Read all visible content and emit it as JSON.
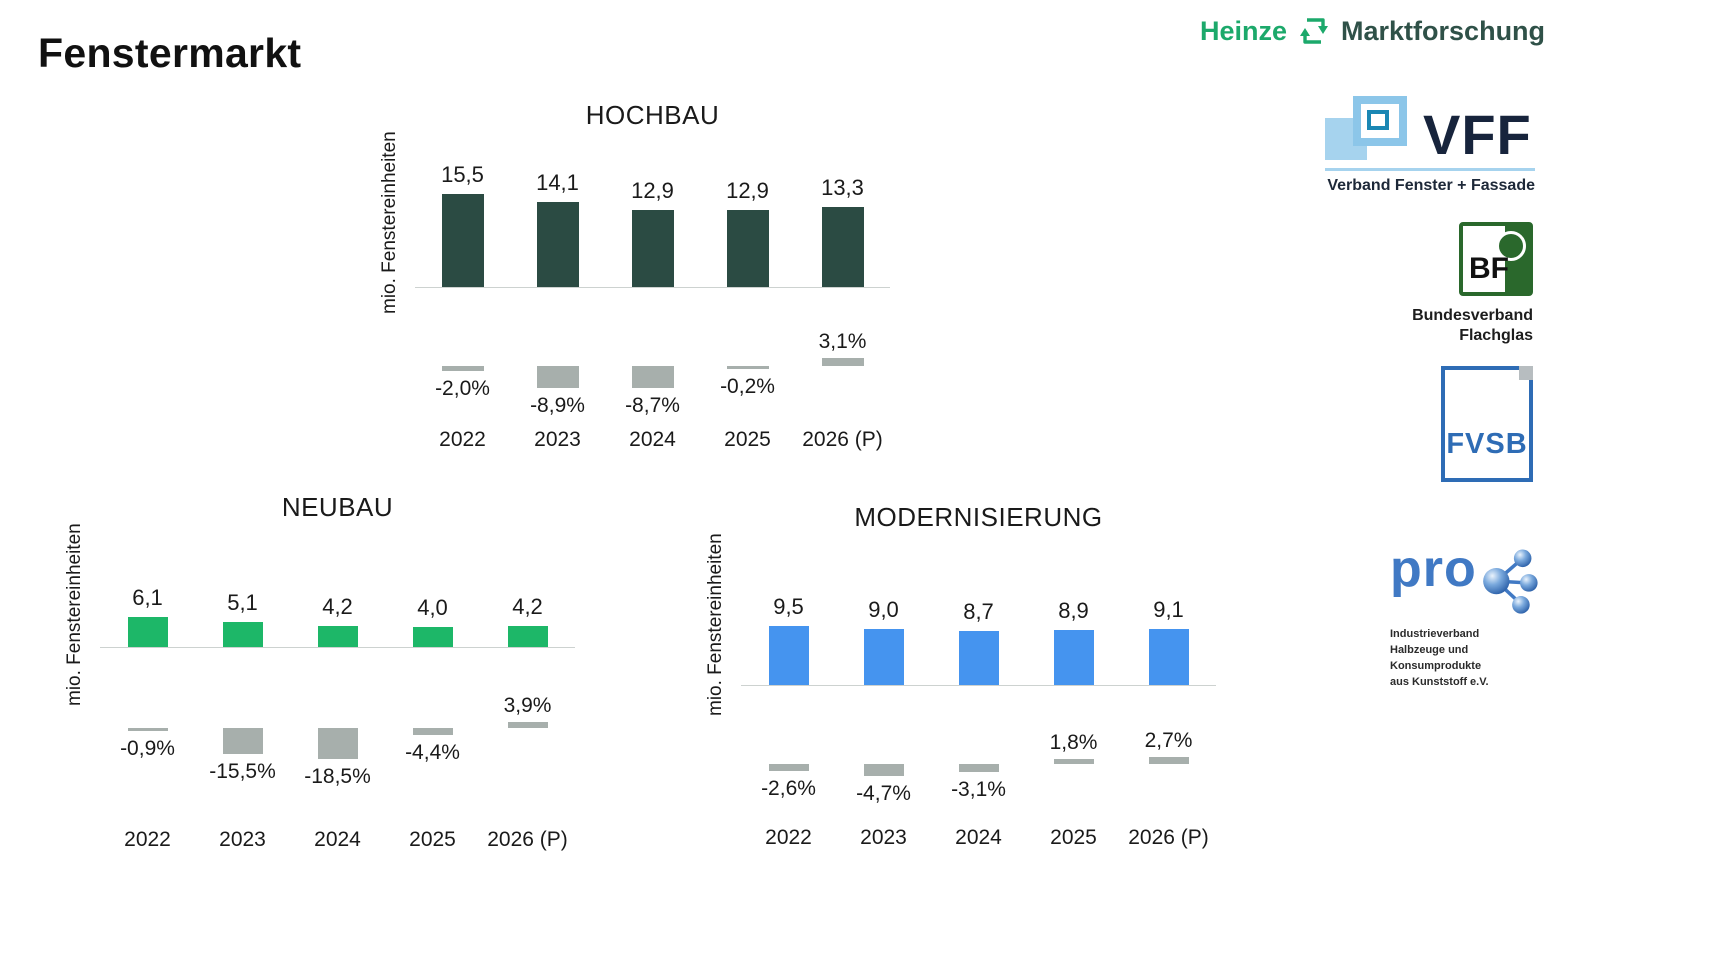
{
  "page": {
    "title": "Fenstermarkt"
  },
  "chart_data": [
    {
      "type": "bar",
      "title": "HOCHBAU",
      "ylabel": "mio. Fenstereinheiten",
      "categories": [
        "2022",
        "2023",
        "2024",
        "2025",
        "2026 (P)"
      ],
      "values": [
        15.5,
        14.1,
        12.9,
        12.9,
        13.3
      ],
      "value_labels": [
        "15,5",
        "14,1",
        "12,9",
        "12,9",
        "13,3"
      ],
      "pct_change_values": [
        -2.0,
        -8.9,
        -8.7,
        -0.2,
        3.1
      ],
      "pct_change_labels": [
        "-2,0%",
        "-8,9%",
        "-8,7%",
        "-0,2%",
        "3,1%"
      ],
      "bar_color": "#2b4b43",
      "pct_bar_color": "#a7afac",
      "grid": false,
      "value_axis_visible": false,
      "legend": "none"
    },
    {
      "type": "bar",
      "title": "NEUBAU",
      "ylabel": "mio. Fenstereinheiten",
      "categories": [
        "2022",
        "2023",
        "2024",
        "2025",
        "2026 (P)"
      ],
      "values": [
        6.1,
        5.1,
        4.2,
        4.0,
        4.2
      ],
      "value_labels": [
        "6,1",
        "5,1",
        "4,2",
        "4,0",
        "4,2"
      ],
      "pct_change_values": [
        -0.9,
        -15.5,
        -18.5,
        -4.4,
        3.9
      ],
      "pct_change_labels": [
        "-0,9%",
        "-15,5%",
        "-18,5%",
        "-4,4%",
        "3,9%"
      ],
      "bar_color": "#1db768",
      "pct_bar_color": "#a7afac",
      "grid": false,
      "value_axis_visible": false,
      "legend": "none"
    },
    {
      "type": "bar",
      "title": "MODERNISIERUNG",
      "ylabel": "mio. Fenstereinheiten",
      "categories": [
        "2022",
        "2023",
        "2024",
        "2025",
        "2026 (P)"
      ],
      "values": [
        9.5,
        9.0,
        8.7,
        8.9,
        9.1
      ],
      "value_labels": [
        "9,5",
        "9,0",
        "8,7",
        "8,9",
        "9,1"
      ],
      "pct_change_values": [
        -2.6,
        -4.7,
        -3.1,
        1.8,
        2.7
      ],
      "pct_change_labels": [
        "-2,6%",
        "-4,7%",
        "-3,1%",
        "1,8%",
        "2,7%"
      ],
      "bar_color": "#4594ef",
      "pct_bar_color": "#a7afac",
      "grid": false,
      "value_axis_visible": false,
      "legend": "none"
    }
  ],
  "logos": {
    "heinze": {
      "name": "Heinze",
      "suffix": "Marktforschung",
      "name_color": "#1ca96b",
      "suffix_color": "#2f5148"
    },
    "vff": {
      "abbr": "VFF",
      "subtitle": "Verband Fenster + Fassade",
      "accent_color": "#a6d3ee",
      "text_color": "#17243c"
    },
    "bf": {
      "abbr": "BF",
      "subtitle_line1": "Bundesverband",
      "subtitle_line2": "Flachglas",
      "color": "#2a682c"
    },
    "fvsb": {
      "abbr": "FVSB",
      "color": "#2e6cb5"
    },
    "prok": {
      "wordmark": "pro",
      "subtitle_lines": [
        "Industrieverband",
        "Halbzeuge und Konsumprodukte",
        "aus Kunststoff e.V."
      ],
      "color": "#4079c4"
    }
  }
}
